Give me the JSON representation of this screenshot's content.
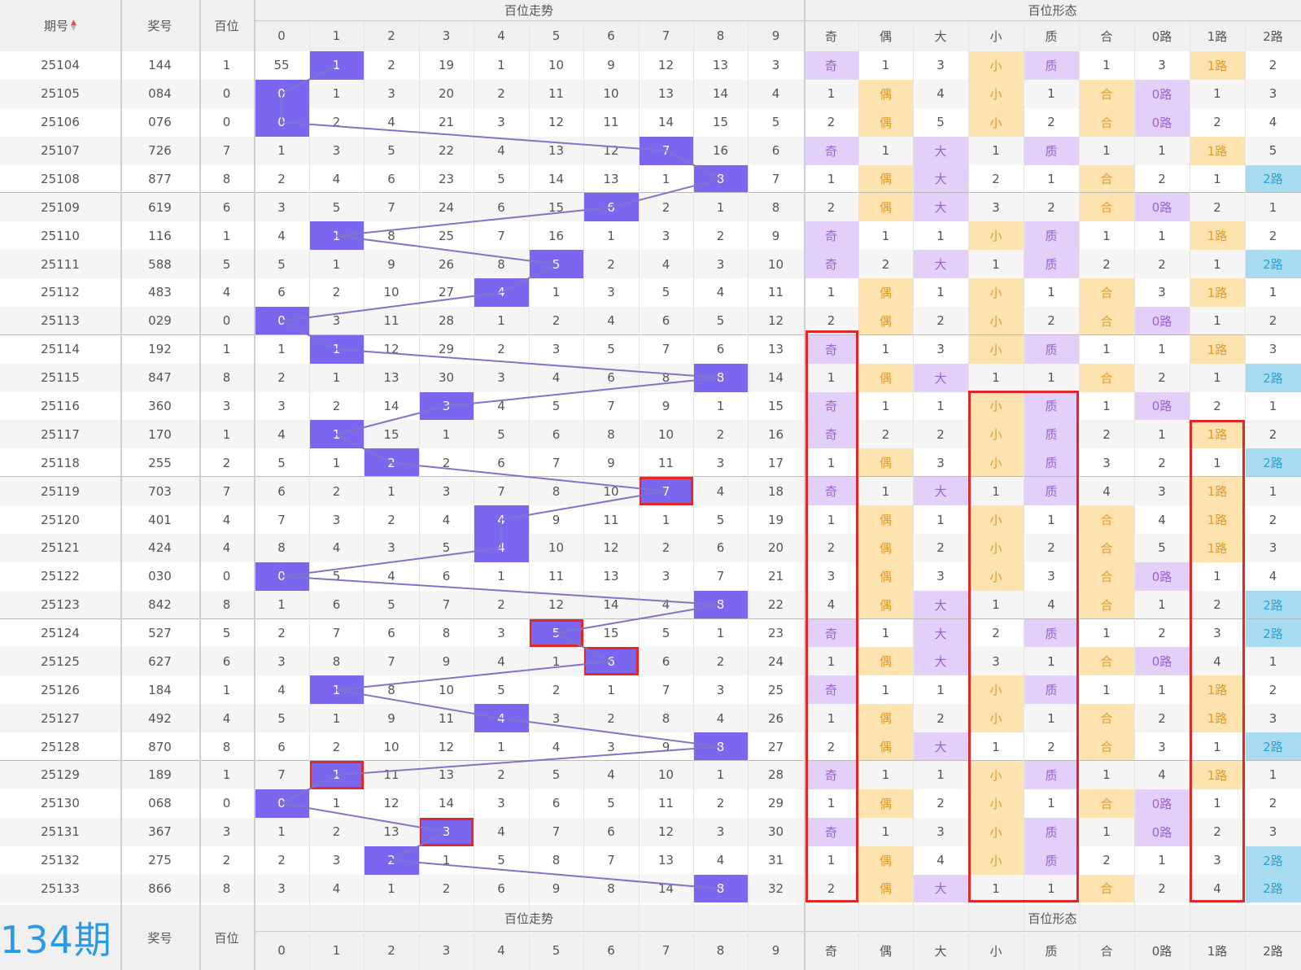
{
  "header": {
    "period_label": "期号",
    "prize_label": "奖号",
    "hundreds_label": "百位",
    "trend_label": "百位走势",
    "form_label": "百位形态",
    "digits": [
      "0",
      "1",
      "2",
      "3",
      "4",
      "5",
      "6",
      "7",
      "8",
      "9"
    ],
    "forms": [
      "奇",
      "偶",
      "大",
      "小",
      "质",
      "合",
      "0路",
      "1路",
      "2路"
    ]
  },
  "footer": {
    "period_label": "134期",
    "prize_label": "奖号",
    "hundreds_label": "百位",
    "trend_label": "百位走势",
    "form_label": "百位形态"
  },
  "colors": {
    "hit": "#7b66f0",
    "purple": "#e2d0f8",
    "orange": "#fde3b0",
    "blue": "#a7dcf0",
    "red": "#e02828",
    "period_big": "#2a9ae6"
  },
  "rows": [
    {
      "p": "25104",
      "n": "144",
      "h": "1",
      "t": [
        "55",
        "1",
        "2",
        "19",
        "1",
        "10",
        "9",
        "12",
        "13",
        "3"
      ],
      "f": [
        "奇",
        "1",
        "3",
        "小",
        "质",
        "1",
        "3",
        "1路",
        "2"
      ]
    },
    {
      "p": "25105",
      "n": "084",
      "h": "0",
      "t": [
        "0",
        "1",
        "3",
        "20",
        "2",
        "11",
        "10",
        "13",
        "14",
        "4"
      ],
      "f": [
        "1",
        "偶",
        "4",
        "小",
        "1",
        "合",
        "0路",
        "1",
        "3"
      ]
    },
    {
      "p": "25106",
      "n": "076",
      "h": "0",
      "t": [
        "0",
        "2",
        "4",
        "21",
        "3",
        "12",
        "11",
        "14",
        "15",
        "5"
      ],
      "f": [
        "2",
        "偶",
        "5",
        "小",
        "2",
        "合",
        "0路",
        "2",
        "4"
      ]
    },
    {
      "p": "25107",
      "n": "726",
      "h": "7",
      "t": [
        "1",
        "3",
        "5",
        "22",
        "4",
        "13",
        "12",
        "7",
        "16",
        "6"
      ],
      "f": [
        "奇",
        "1",
        "大",
        "1",
        "质",
        "1",
        "1",
        "1路",
        "5"
      ]
    },
    {
      "p": "25108",
      "n": "877",
      "h": "8",
      "t": [
        "2",
        "4",
        "6",
        "23",
        "5",
        "14",
        "13",
        "1",
        "8",
        "7"
      ],
      "f": [
        "1",
        "偶",
        "大",
        "2",
        "1",
        "合",
        "2",
        "1",
        "2路"
      ]
    },
    {
      "p": "25109",
      "n": "619",
      "h": "6",
      "t": [
        "3",
        "5",
        "7",
        "24",
        "6",
        "15",
        "6",
        "2",
        "1",
        "8"
      ],
      "f": [
        "2",
        "偶",
        "大",
        "3",
        "2",
        "合",
        "0路",
        "2",
        "1"
      ]
    },
    {
      "p": "25110",
      "n": "116",
      "h": "1",
      "t": [
        "4",
        "1",
        "8",
        "25",
        "7",
        "16",
        "1",
        "3",
        "2",
        "9"
      ],
      "f": [
        "奇",
        "1",
        "1",
        "小",
        "质",
        "1",
        "1",
        "1路",
        "2"
      ]
    },
    {
      "p": "25111",
      "n": "588",
      "h": "5",
      "t": [
        "5",
        "1",
        "9",
        "26",
        "8",
        "5",
        "2",
        "4",
        "3",
        "10"
      ],
      "f": [
        "奇",
        "2",
        "大",
        "1",
        "质",
        "2",
        "2",
        "1",
        "2路"
      ]
    },
    {
      "p": "25112",
      "n": "483",
      "h": "4",
      "t": [
        "6",
        "2",
        "10",
        "27",
        "4",
        "1",
        "3",
        "5",
        "4",
        "11"
      ],
      "f": [
        "1",
        "偶",
        "1",
        "小",
        "1",
        "合",
        "3",
        "1路",
        "1"
      ]
    },
    {
      "p": "25113",
      "n": "029",
      "h": "0",
      "t": [
        "0",
        "3",
        "11",
        "28",
        "1",
        "2",
        "4",
        "6",
        "5",
        "12"
      ],
      "f": [
        "2",
        "偶",
        "2",
        "小",
        "2",
        "合",
        "0路",
        "1",
        "2"
      ]
    },
    {
      "p": "25114",
      "n": "192",
      "h": "1",
      "t": [
        "1",
        "1",
        "12",
        "29",
        "2",
        "3",
        "5",
        "7",
        "6",
        "13"
      ],
      "f": [
        "奇",
        "1",
        "3",
        "小",
        "质",
        "1",
        "1",
        "1路",
        "3"
      ]
    },
    {
      "p": "25115",
      "n": "847",
      "h": "8",
      "t": [
        "2",
        "1",
        "13",
        "30",
        "3",
        "4",
        "6",
        "8",
        "8",
        "14"
      ],
      "f": [
        "1",
        "偶",
        "大",
        "1",
        "1",
        "合",
        "2",
        "1",
        "2路"
      ]
    },
    {
      "p": "25116",
      "n": "360",
      "h": "3",
      "t": [
        "3",
        "2",
        "14",
        "3",
        "4",
        "5",
        "7",
        "9",
        "1",
        "15"
      ],
      "f": [
        "奇",
        "1",
        "1",
        "小",
        "质",
        "1",
        "0路",
        "2",
        "1"
      ]
    },
    {
      "p": "25117",
      "n": "170",
      "h": "1",
      "t": [
        "4",
        "1",
        "15",
        "1",
        "5",
        "6",
        "8",
        "10",
        "2",
        "16"
      ],
      "f": [
        "奇",
        "2",
        "2",
        "小",
        "质",
        "2",
        "1",
        "1路",
        "2"
      ]
    },
    {
      "p": "25118",
      "n": "255",
      "h": "2",
      "t": [
        "5",
        "1",
        "2",
        "2",
        "6",
        "7",
        "9",
        "11",
        "3",
        "17"
      ],
      "f": [
        "1",
        "偶",
        "3",
        "小",
        "质",
        "3",
        "2",
        "1",
        "2路"
      ]
    },
    {
      "p": "25119",
      "n": "703",
      "h": "7",
      "t": [
        "6",
        "2",
        "1",
        "3",
        "7",
        "8",
        "10",
        "7",
        "4",
        "18"
      ],
      "f": [
        "奇",
        "1",
        "大",
        "1",
        "质",
        "4",
        "3",
        "1路",
        "1"
      ]
    },
    {
      "p": "25120",
      "n": "401",
      "h": "4",
      "t": [
        "7",
        "3",
        "2",
        "4",
        "4",
        "9",
        "11",
        "1",
        "5",
        "19"
      ],
      "f": [
        "1",
        "偶",
        "1",
        "小",
        "1",
        "合",
        "4",
        "1路",
        "2"
      ]
    },
    {
      "p": "25121",
      "n": "424",
      "h": "4",
      "t": [
        "8",
        "4",
        "3",
        "5",
        "4",
        "10",
        "12",
        "2",
        "6",
        "20"
      ],
      "f": [
        "2",
        "偶",
        "2",
        "小",
        "2",
        "合",
        "5",
        "1路",
        "3"
      ]
    },
    {
      "p": "25122",
      "n": "030",
      "h": "0",
      "t": [
        "0",
        "5",
        "4",
        "6",
        "1",
        "11",
        "13",
        "3",
        "7",
        "21"
      ],
      "f": [
        "3",
        "偶",
        "3",
        "小",
        "3",
        "合",
        "0路",
        "1",
        "4"
      ]
    },
    {
      "p": "25123",
      "n": "842",
      "h": "8",
      "t": [
        "1",
        "6",
        "5",
        "7",
        "2",
        "12",
        "14",
        "4",
        "8",
        "22"
      ],
      "f": [
        "4",
        "偶",
        "大",
        "1",
        "4",
        "合",
        "1",
        "2",
        "2路"
      ]
    },
    {
      "p": "25124",
      "n": "527",
      "h": "5",
      "t": [
        "2",
        "7",
        "6",
        "8",
        "3",
        "5",
        "15",
        "5",
        "1",
        "23"
      ],
      "f": [
        "奇",
        "1",
        "大",
        "2",
        "质",
        "1",
        "2",
        "3",
        "2路"
      ]
    },
    {
      "p": "25125",
      "n": "627",
      "h": "6",
      "t": [
        "3",
        "8",
        "7",
        "9",
        "4",
        "1",
        "6",
        "6",
        "2",
        "24"
      ],
      "f": [
        "1",
        "偶",
        "大",
        "3",
        "1",
        "合",
        "0路",
        "4",
        "1"
      ]
    },
    {
      "p": "25126",
      "n": "184",
      "h": "1",
      "t": [
        "4",
        "1",
        "8",
        "10",
        "5",
        "2",
        "1",
        "7",
        "3",
        "25"
      ],
      "f": [
        "奇",
        "1",
        "1",
        "小",
        "质",
        "1",
        "1",
        "1路",
        "2"
      ]
    },
    {
      "p": "25127",
      "n": "492",
      "h": "4",
      "t": [
        "5",
        "1",
        "9",
        "11",
        "4",
        "3",
        "2",
        "8",
        "4",
        "26"
      ],
      "f": [
        "1",
        "偶",
        "2",
        "小",
        "1",
        "合",
        "2",
        "1路",
        "3"
      ]
    },
    {
      "p": "25128",
      "n": "870",
      "h": "8",
      "t": [
        "6",
        "2",
        "10",
        "12",
        "1",
        "4",
        "3",
        "9",
        "8",
        "27"
      ],
      "f": [
        "2",
        "偶",
        "大",
        "1",
        "2",
        "合",
        "3",
        "1",
        "2路"
      ]
    },
    {
      "p": "25129",
      "n": "189",
      "h": "1",
      "t": [
        "7",
        "1",
        "11",
        "13",
        "2",
        "5",
        "4",
        "10",
        "1",
        "28"
      ],
      "f": [
        "奇",
        "1",
        "1",
        "小",
        "质",
        "1",
        "4",
        "1路",
        "1"
      ]
    },
    {
      "p": "25130",
      "n": "068",
      "h": "0",
      "t": [
        "0",
        "1",
        "12",
        "14",
        "3",
        "6",
        "5",
        "11",
        "2",
        "29"
      ],
      "f": [
        "1",
        "偶",
        "2",
        "小",
        "1",
        "合",
        "0路",
        "1",
        "2"
      ]
    },
    {
      "p": "25131",
      "n": "367",
      "h": "3",
      "t": [
        "1",
        "2",
        "13",
        "3",
        "4",
        "7",
        "6",
        "12",
        "3",
        "30"
      ],
      "f": [
        "奇",
        "1",
        "3",
        "小",
        "质",
        "1",
        "0路",
        "2",
        "3"
      ]
    },
    {
      "p": "25132",
      "n": "275",
      "h": "2",
      "t": [
        "2",
        "3",
        "2",
        "1",
        "5",
        "8",
        "7",
        "13",
        "4",
        "31"
      ],
      "f": [
        "1",
        "偶",
        "4",
        "小",
        "质",
        "2",
        "1",
        "3",
        "2路"
      ]
    },
    {
      "p": "25133",
      "n": "866",
      "h": "8",
      "t": [
        "3",
        "4",
        "1",
        "2",
        "6",
        "9",
        "8",
        "14",
        "8",
        "32"
      ],
      "f": [
        "2",
        "偶",
        "大",
        "1",
        "1",
        "合",
        "2",
        "4",
        "2路"
      ]
    }
  ],
  "red_boxed_hits": [
    "25119",
    "25124",
    "25125",
    "25129",
    "25131"
  ]
}
